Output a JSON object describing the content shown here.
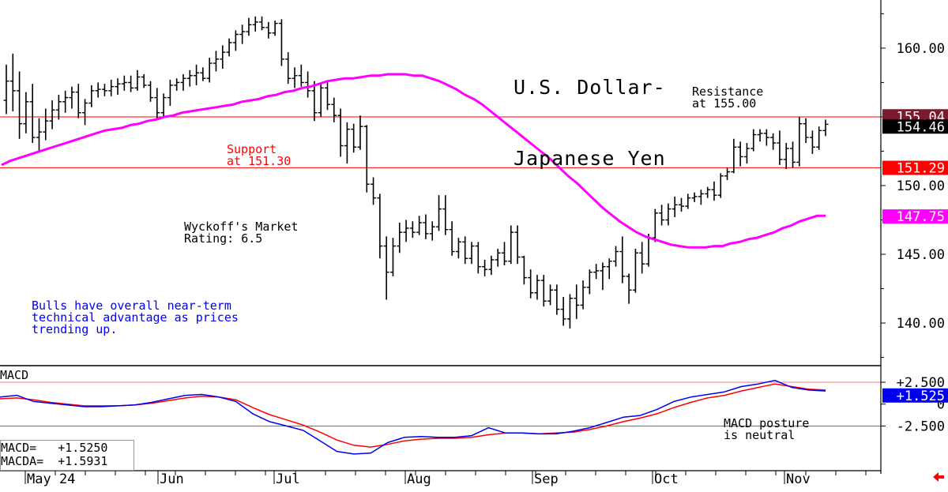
{
  "chart_data": [
    {
      "type": "line",
      "title": "U.S. Dollar-\nJapanese Yen",
      "title_lines": [
        "U.S. Dollar-",
        "Japanese Yen"
      ],
      "yticks": [
        "160.00",
        "155.00",
        "150.00",
        "145.00",
        "140.00"
      ],
      "ylim": [
        136.9,
        163.5
      ],
      "xticks": [
        "May 24",
        "Jun",
        "Jul",
        "Aug",
        "Sep",
        "Oct",
        "Nov"
      ],
      "price_tags": [
        {
          "label": "155.04",
          "value": 155.04,
          "color": "#7a1a2e"
        },
        {
          "label": "154.46",
          "value": 154.46,
          "color": "#000000"
        },
        {
          "label": "151.29",
          "value": 151.29,
          "color": "#ff0000"
        },
        {
          "label": "147.75",
          "value": 147.75,
          "color": "#ff00ff"
        }
      ],
      "horizontal_lines": [
        {
          "name": "resistance",
          "value": 155.0,
          "color": "#ff0000"
        },
        {
          "name": "support",
          "value": 151.3,
          "color": "#ff0000"
        }
      ],
      "annotations": {
        "resistance": "Resistance\nat 155.00",
        "support": "Support\nat 151.30",
        "rating": "Wyckoff's Market\nRating: 6.5",
        "bulls": "Bulls have overall near-term\ntechnical advantage as prices\ntrending up."
      },
      "ohlc": [
        [
          156.2,
          158.8,
          155.2,
          157.6
        ],
        [
          157.6,
          159.6,
          155.4,
          156.9
        ],
        [
          156.9,
          158.3,
          153.4,
          154.5
        ],
        [
          154.5,
          156.8,
          153.8,
          156.1
        ],
        [
          156.1,
          157.4,
          153.1,
          153.5
        ],
        [
          153.5,
          154.9,
          152.4,
          153.9
        ],
        [
          153.9,
          155.6,
          153.3,
          154.7
        ],
        [
          154.7,
          156.2,
          154.1,
          155.5
        ],
        [
          155.5,
          156.6,
          154.8,
          156.1
        ],
        [
          156.1,
          156.9,
          155.3,
          156.4
        ],
        [
          156.4,
          157.2,
          155.6,
          156.8
        ],
        [
          156.8,
          157.4,
          154.9,
          155.3
        ],
        [
          155.3,
          156.3,
          154.4,
          156.0
        ],
        [
          156.0,
          157.3,
          155.7,
          156.9
        ],
        [
          156.9,
          157.5,
          156.4,
          157.0
        ],
        [
          157.0,
          157.4,
          156.5,
          156.9
        ],
        [
          156.9,
          157.7,
          156.5,
          157.2
        ],
        [
          157.2,
          157.8,
          156.6,
          157.4
        ],
        [
          157.4,
          158.0,
          156.9,
          157.5
        ],
        [
          157.5,
          158.0,
          156.8,
          157.1
        ],
        [
          157.1,
          158.4,
          156.9,
          157.9
        ],
        [
          157.9,
          158.1,
          157.1,
          157.3
        ],
        [
          157.3,
          157.6,
          156.1,
          156.4
        ],
        [
          156.4,
          157.1,
          154.8,
          155.3
        ],
        [
          155.3,
          156.7,
          155.0,
          156.4
        ],
        [
          156.4,
          157.7,
          155.8,
          157.3
        ],
        [
          157.3,
          157.8,
          156.9,
          157.5
        ],
        [
          157.5,
          158.1,
          156.9,
          157.8
        ],
        [
          157.8,
          158.4,
          157.2,
          158.0
        ],
        [
          158.0,
          158.8,
          157.3,
          158.2
        ],
        [
          158.2,
          158.6,
          157.6,
          157.8
        ],
        [
          157.8,
          159.3,
          157.5,
          158.9
        ],
        [
          158.9,
          159.8,
          158.3,
          159.2
        ],
        [
          159.2,
          160.2,
          158.5,
          159.7
        ],
        [
          159.7,
          160.7,
          159.4,
          160.4
        ],
        [
          160.4,
          161.3,
          159.8,
          161.0
        ],
        [
          161.0,
          161.7,
          160.3,
          161.2
        ],
        [
          161.2,
          162.2,
          160.9,
          161.7
        ],
        [
          161.7,
          162.3,
          161.2,
          161.9
        ],
        [
          161.9,
          162.3,
          161.3,
          161.5
        ],
        [
          161.5,
          161.9,
          160.7,
          161.1
        ],
        [
          161.1,
          162.0,
          160.9,
          161.8
        ],
        [
          161.8,
          162.1,
          158.7,
          159.2
        ],
        [
          159.2,
          159.7,
          157.4,
          157.8
        ],
        [
          157.8,
          158.6,
          157.1,
          158.0
        ],
        [
          158.0,
          158.8,
          157.2,
          157.5
        ],
        [
          157.5,
          158.3,
          156.4,
          156.9
        ],
        [
          156.9,
          157.6,
          154.7,
          155.3
        ],
        [
          155.3,
          157.4,
          155.0,
          157.1
        ],
        [
          157.1,
          157.6,
          155.5,
          155.9
        ],
        [
          155.9,
          156.4,
          154.6,
          155.1
        ],
        [
          155.1,
          155.6,
          152.1,
          152.9
        ],
        [
          152.9,
          154.6,
          151.6,
          154.1
        ],
        [
          154.1,
          154.5,
          152.4,
          152.8
        ],
        [
          152.8,
          155.1,
          152.6,
          154.3
        ],
        [
          154.3,
          154.4,
          149.5,
          150.1
        ],
        [
          150.1,
          150.6,
          148.6,
          149.1
        ],
        [
          149.1,
          149.4,
          144.7,
          145.6
        ],
        [
          145.6,
          146.3,
          141.7,
          143.7
        ],
        [
          143.7,
          146.2,
          143.4,
          145.6
        ],
        [
          145.6,
          147.3,
          145.1,
          146.6
        ],
        [
          146.6,
          147.5,
          145.9,
          146.9
        ],
        [
          146.9,
          147.4,
          146.2,
          146.6
        ],
        [
          146.6,
          147.8,
          146.4,
          147.3
        ],
        [
          147.3,
          147.9,
          146.1,
          146.5
        ],
        [
          146.5,
          147.4,
          146.0,
          147.0
        ],
        [
          147.0,
          149.3,
          146.7,
          148.3
        ],
        [
          148.3,
          149.3,
          146.4,
          146.8
        ],
        [
          146.8,
          147.4,
          144.9,
          145.2
        ],
        [
          145.2,
          146.2,
          144.7,
          145.9
        ],
        [
          145.9,
          146.3,
          144.3,
          144.7
        ],
        [
          144.7,
          145.9,
          144.3,
          145.6
        ],
        [
          145.6,
          145.9,
          143.6,
          144.1
        ],
        [
          144.1,
          144.6,
          143.4,
          143.9
        ],
        [
          143.9,
          144.9,
          143.5,
          144.6
        ],
        [
          144.6,
          145.4,
          144.1,
          145.1
        ],
        [
          145.1,
          145.9,
          144.2,
          144.5
        ],
        [
          144.5,
          147.1,
          144.3,
          146.6
        ],
        [
          146.6,
          147.1,
          144.3,
          144.8
        ],
        [
          144.8,
          144.9,
          142.8,
          143.3
        ],
        [
          143.3,
          143.9,
          141.8,
          142.2
        ],
        [
          142.2,
          143.5,
          141.7,
          143.1
        ],
        [
          143.1,
          143.5,
          141.2,
          141.6
        ],
        [
          141.6,
          142.8,
          141.3,
          142.4
        ],
        [
          142.4,
          142.8,
          140.6,
          141.0
        ],
        [
          141.0,
          141.9,
          139.8,
          140.3
        ],
        [
          140.3,
          142.1,
          139.6,
          141.8
        ],
        [
          141.8,
          142.8,
          140.3,
          141.3
        ],
        [
          141.3,
          143.1,
          141.0,
          142.6
        ],
        [
          142.6,
          143.9,
          142.1,
          143.7
        ],
        [
          143.7,
          144.3,
          143.2,
          143.8
        ],
        [
          143.8,
          144.4,
          142.4,
          144.1
        ],
        [
          144.1,
          144.7,
          143.2,
          144.5
        ],
        [
          144.5,
          145.6,
          144.1,
          145.2
        ],
        [
          145.2,
          146.3,
          142.9,
          143.4
        ],
        [
          143.4,
          143.6,
          141.4,
          142.4
        ],
        [
          142.4,
          145.4,
          142.2,
          145.1
        ],
        [
          145.1,
          145.9,
          143.6,
          144.3
        ],
        [
          144.3,
          146.5,
          144.1,
          146.2
        ],
        [
          146.2,
          148.3,
          145.9,
          148.0
        ],
        [
          148.0,
          148.6,
          147.1,
          147.5
        ],
        [
          147.5,
          148.7,
          147.1,
          148.3
        ],
        [
          148.3,
          149.2,
          147.7,
          148.6
        ],
        [
          148.6,
          149.1,
          148.1,
          148.5
        ],
        [
          148.5,
          149.4,
          148.3,
          149.1
        ],
        [
          149.1,
          149.5,
          148.8,
          149.2
        ],
        [
          149.2,
          149.7,
          148.6,
          149.4
        ],
        [
          149.4,
          149.9,
          149.1,
          149.7
        ],
        [
          149.7,
          150.3,
          148.9,
          149.3
        ],
        [
          149.3,
          150.9,
          149.1,
          150.7
        ],
        [
          150.7,
          151.3,
          150.4,
          151.0
        ],
        [
          151.0,
          153.4,
          150.9,
          152.8
        ],
        [
          152.8,
          153.2,
          151.4,
          152.1
        ],
        [
          152.1,
          153.1,
          151.6,
          152.7
        ],
        [
          152.7,
          154.1,
          152.5,
          153.7
        ],
        [
          153.7,
          154.1,
          153.2,
          153.8
        ],
        [
          153.8,
          154.1,
          152.9,
          153.5
        ],
        [
          153.5,
          153.8,
          152.6,
          153.1
        ],
        [
          153.1,
          154.0,
          151.5,
          151.9
        ],
        [
          151.9,
          153.1,
          151.2,
          152.7
        ],
        [
          152.7,
          153.2,
          151.3,
          151.7
        ],
        [
          151.7,
          155.0,
          151.4,
          154.5
        ],
        [
          154.5,
          154.9,
          153.1,
          153.5
        ],
        [
          153.5,
          154.0,
          152.3,
          152.8
        ],
        [
          152.8,
          154.3,
          152.6,
          154.0
        ],
        [
          154.0,
          154.8,
          153.6,
          154.46
        ]
      ],
      "series": [
        {
          "values": [
            151.5,
            151.8,
            152.0,
            152.2,
            152.4,
            152.6,
            152.8,
            153.0,
            153.2,
            153.4,
            153.6,
            153.8,
            154.0,
            154.1,
            154.2,
            154.4,
            154.5,
            154.7,
            154.8,
            155.0,
            155.1,
            155.3,
            155.4,
            155.5,
            155.6,
            155.7,
            155.8,
            155.9,
            156.1,
            156.2,
            156.3,
            156.5,
            156.6,
            156.8,
            156.9,
            157.1,
            157.2,
            157.4,
            157.6,
            157.7,
            157.8,
            157.8,
            157.9,
            158.0,
            158.0,
            158.1,
            158.1,
            158.1,
            158.0,
            158.0,
            157.8,
            157.6,
            157.3,
            157.0,
            156.6,
            156.3,
            155.9,
            155.4,
            154.9,
            154.4,
            153.9,
            153.4,
            152.9,
            152.4,
            151.9,
            151.3,
            150.7,
            150.2,
            149.6,
            149.0,
            148.4,
            147.9,
            147.4,
            147.0,
            146.6,
            146.3,
            146.1,
            145.9,
            145.7,
            145.6,
            145.5,
            145.5,
            145.5,
            145.6,
            145.6,
            145.8,
            145.9,
            146.1,
            146.2,
            146.4,
            146.6,
            146.9,
            147.1,
            147.4,
            147.6,
            147.8,
            147.8
          ]
        },
        {
          "name": "MACD",
          "values": [
            0.8,
            1.0,
            0.3,
            0.1,
            -0.1,
            -0.3,
            -0.3,
            -0.2,
            -0.1,
            0.2,
            0.6,
            1.0,
            1.1,
            0.8,
            0.3,
            -1.1,
            -2.0,
            -2.5,
            -3.0,
            -4.2,
            -5.4,
            -5.7,
            -5.6,
            -4.4,
            -3.8,
            -3.7,
            -3.8,
            -3.8,
            -3.6,
            -2.7,
            -3.3,
            -3.3,
            -3.4,
            -3.4,
            -3.1,
            -2.7,
            -2.1,
            -1.5,
            -1.3,
            -0.6,
            0.3,
            0.8,
            1.1,
            1.4,
            2.0,
            2.3,
            2.7,
            1.9,
            1.6,
            1.5
          ]
        },
        {
          "name": "MACDA",
          "values": [
            0.6,
            0.7,
            0.5,
            0.2,
            0.0,
            -0.2,
            -0.2,
            -0.2,
            -0.1,
            0.1,
            0.4,
            0.7,
            0.9,
            0.8,
            0.5,
            -0.4,
            -1.2,
            -1.8,
            -2.4,
            -3.2,
            -4.1,
            -4.7,
            -4.9,
            -4.6,
            -4.2,
            -4.0,
            -3.9,
            -3.9,
            -3.8,
            -3.5,
            -3.3,
            -3.3,
            -3.4,
            -3.3,
            -3.2,
            -2.9,
            -2.5,
            -2.0,
            -1.6,
            -1.1,
            -0.4,
            0.2,
            0.7,
            1.0,
            1.5,
            1.9,
            2.3,
            2.0,
            1.7,
            1.6
          ]
        }
      ]
    },
    {
      "type": "line",
      "title": "MACD",
      "yticks": [
        "+2.500",
        "0",
        "-2.500"
      ],
      "ylim": [
        -7.6,
        4.3
      ],
      "tags": [
        {
          "label": "+1.525",
          "value": 1.525,
          "color": "#0000ee"
        }
      ],
      "horizontal_lines": [
        {
          "name": "upper",
          "value": 2.5,
          "color": "#ff0000"
        },
        {
          "name": "lower",
          "value": -2.5,
          "color": "#0000ee"
        }
      ],
      "readout": {
        "macd": "MACD=   +1.5250",
        "macda": "MACDA=  +1.5931"
      },
      "annotation": "MACD posture\nis neutral"
    }
  ]
}
